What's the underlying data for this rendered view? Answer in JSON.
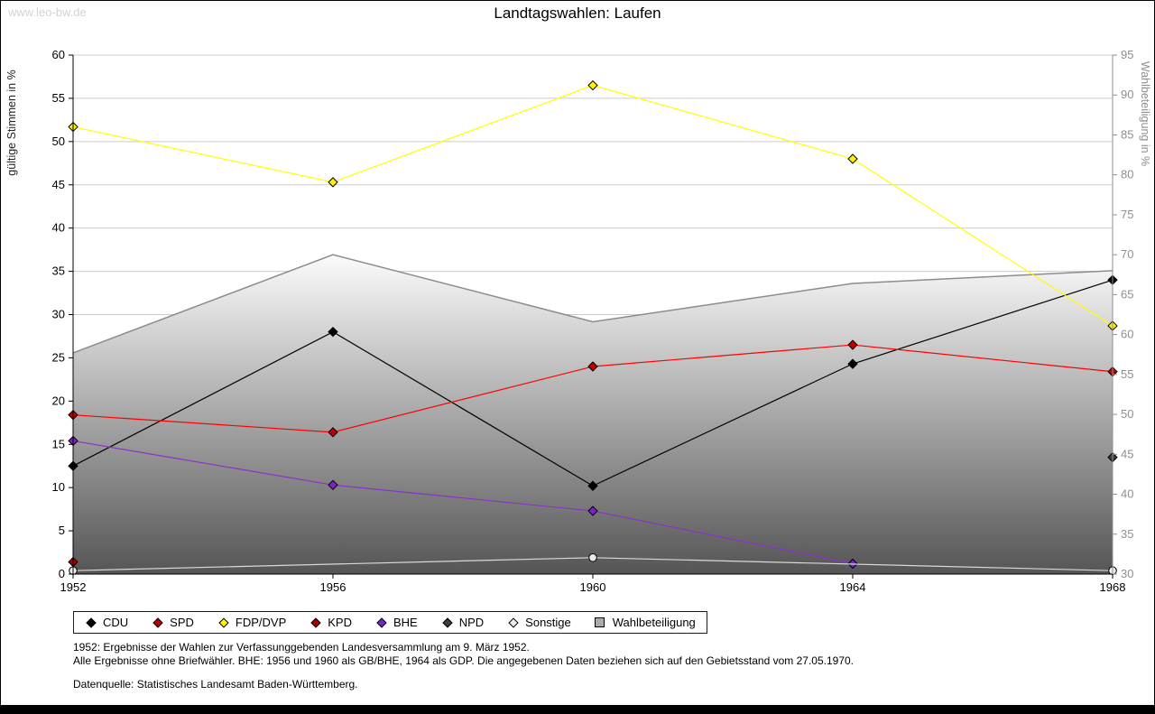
{
  "watermark": "www.leo-bw.de",
  "chart_data": {
    "type": "line",
    "title": "Landtagswahlen: Laufen",
    "ylabel_left": "gültige Stimmen in %",
    "ylabel_right": "Wahlbeteiligung in %",
    "left_range": [
      0,
      60
    ],
    "left_step": 5,
    "right_range": [
      30,
      95
    ],
    "right_step": 5,
    "grid": true,
    "legend_position": "bottom",
    "x_labels": [
      "1952",
      "1956",
      "1960",
      "1964",
      "1968"
    ],
    "series": [
      {
        "name": "CDU",
        "line_color": "#000000",
        "marker_color": "#000000",
        "marker": "diamond",
        "values": [
          12.5,
          28.0,
          10.2,
          24.3,
          34.0
        ]
      },
      {
        "name": "SPD",
        "line_color": "#ff0000",
        "marker_color": "#c00000",
        "marker": "diamond",
        "values": [
          18.4,
          16.4,
          24.0,
          26.5,
          23.4
        ]
      },
      {
        "name": "FDP/DVP",
        "line_color": "#ffff00",
        "marker_color": "#ffee00",
        "marker": "diamond",
        "values": [
          51.7,
          45.3,
          56.5,
          48.0,
          28.7
        ]
      },
      {
        "name": "KPD",
        "line_color": "#aa0000",
        "marker_color": "#aa0000",
        "marker": "diamond",
        "values": [
          1.4,
          null,
          null,
          null,
          null
        ]
      },
      {
        "name": "BHE",
        "line_color": "#8833cc",
        "marker_color": "#7b24c4",
        "marker": "diamond",
        "values": [
          15.4,
          10.3,
          7.3,
          1.2,
          null
        ]
      },
      {
        "name": "NPD",
        "line_color": "#3c3c3c",
        "marker_color": "#3c3c3c",
        "marker": "diamond",
        "values": [
          null,
          null,
          null,
          null,
          13.5
        ]
      },
      {
        "name": "Sonstige",
        "line_color": "#d9d9d9",
        "marker_color": "#ececec",
        "marker": "circle",
        "values": [
          0.4,
          null,
          1.9,
          null,
          0.4
        ]
      }
    ],
    "turnout": {
      "name": "Wahlbeteiligung",
      "axis": "right",
      "line_color": "#8c8c8c",
      "fill_top": "#fbfbfb",
      "fill_bottom": "#555555",
      "legend_color": "#ababab",
      "values": [
        57.7,
        70.0,
        61.6,
        66.4,
        68.0
      ]
    },
    "grid_color": "#cccccc",
    "right_axis_color": "#8f8f8f"
  },
  "footnotes": {
    "line1": "1952: Ergebnisse der Wahlen zur Verfassunggebenden Landesversammlung am 9. März 1952.",
    "line2": "Alle Ergebnisse ohne Briefwähler. BHE: 1956 und 1960 als GB/BHE, 1964 als GDP. Die angegebenen Daten beziehen sich auf den Gebietsstand vom 27.05.1970.",
    "source": "Datenquelle: Statistisches Landesamt Baden-Württemberg."
  }
}
